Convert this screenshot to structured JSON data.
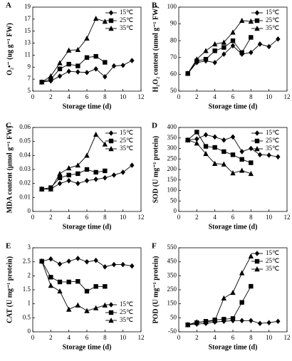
{
  "chart_data": [
    {
      "type": "line",
      "label": "A",
      "ylabel": "O₂•⁻ (ug g⁻¹ FW)",
      "xlabel": "Storage time (d)",
      "xlim": [
        0,
        12
      ],
      "xticks": [
        0,
        2,
        4,
        6,
        8,
        10,
        12
      ],
      "ylim": [
        5,
        19
      ],
      "yticks": [
        5,
        7,
        9,
        11,
        13,
        15,
        17,
        19
      ],
      "legend": "upper-right",
      "series": [
        {
          "name": "15℃",
          "color": "#000000",
          "marker": "diamond",
          "x": [
            1,
            2,
            3,
            4,
            5,
            6,
            7,
            8,
            9,
            10,
            11
          ],
          "values": [
            6.5,
            6.7,
            7.5,
            8.3,
            8.2,
            8.1,
            8.7,
            7.4,
            9.2,
            9.3,
            10.1
          ]
        },
        {
          "name": "25℃",
          "color": "#000000",
          "marker": "square",
          "x": [
            1,
            2,
            3,
            4,
            5,
            6,
            7,
            8
          ],
          "values": [
            6.5,
            7.0,
            8.7,
            9.5,
            9.2,
            10.6,
            10.8,
            9.8
          ]
        },
        {
          "name": "35℃",
          "color": "#000000",
          "marker": "triangle",
          "x": [
            1,
            2,
            3,
            4,
            5,
            6,
            7,
            8
          ],
          "values": [
            6.5,
            7.5,
            9.7,
            11.8,
            11.9,
            13.8,
            17.1,
            16.6
          ]
        }
      ]
    },
    {
      "type": "line",
      "label": "B",
      "ylabel": "H₂O₂ content (umol g⁻¹ FW)",
      "xlabel": "Storage time (d)",
      "xlim": [
        0,
        12
      ],
      "xticks": [
        0,
        2,
        4,
        6,
        8,
        10,
        12
      ],
      "ylim": [
        50,
        100
      ],
      "yticks": [
        50,
        60,
        70,
        80,
        90,
        100
      ],
      "legend": "upper-right",
      "series": [
        {
          "name": "15℃",
          "color": "#000000",
          "marker": "diamond",
          "x": [
            1,
            2,
            3,
            4,
            5,
            6,
            7,
            8,
            9,
            10,
            11
          ],
          "values": [
            60.5,
            67,
            68,
            67,
            72,
            77,
            72,
            73,
            78,
            76.5,
            81
          ]
        },
        {
          "name": "25℃",
          "color": "#000000",
          "marker": "square",
          "x": [
            1,
            2,
            3,
            4,
            5,
            6,
            7,
            8
          ],
          "values": [
            60.5,
            68,
            69,
            74,
            76,
            80,
            73,
            82
          ]
        },
        {
          "name": "35℃",
          "color": "#000000",
          "marker": "triangle",
          "x": [
            1,
            2,
            3,
            4,
            5,
            6,
            7,
            8
          ],
          "values": [
            60.5,
            69,
            74,
            78,
            79,
            85,
            92,
            91.5
          ]
        }
      ]
    },
    {
      "type": "line",
      "label": "C",
      "ylabel": "MDA content (μmol g⁻¹ FW)",
      "xlabel": "Storage time (d)",
      "xlim": [
        0,
        12
      ],
      "xticks": [
        0,
        2,
        4,
        6,
        8,
        10,
        12
      ],
      "ylim": [
        0,
        0.06
      ],
      "yticks": [
        0,
        0.01,
        0.02,
        0.03,
        0.04,
        0.05,
        0.06
      ],
      "legend": "upper-right",
      "series": [
        {
          "name": "15℃",
          "color": "#000000",
          "marker": "diamond",
          "x": [
            1,
            2,
            3,
            4,
            5,
            6,
            7,
            8,
            9,
            10,
            11
          ],
          "values": [
            0.016,
            0.016,
            0.02,
            0.022,
            0.02,
            0.022,
            0.023,
            0.024,
            0.026,
            0.028,
            0.033
          ]
        },
        {
          "name": "25℃",
          "color": "#000000",
          "marker": "square",
          "x": [
            1,
            2,
            3,
            4,
            5,
            6,
            7,
            8
          ],
          "values": [
            0.016,
            0.017,
            0.024,
            0.026,
            0.027,
            0.03,
            0.028,
            0.029
          ]
        },
        {
          "name": "35℃",
          "color": "#000000",
          "marker": "triangle",
          "x": [
            1,
            2,
            3,
            4,
            5,
            6,
            7,
            8
          ],
          "values": [
            0.016,
            0.016,
            0.027,
            0.031,
            0.033,
            0.04,
            0.055,
            0.048
          ]
        }
      ]
    },
    {
      "type": "line",
      "label": "D",
      "ylabel": "SOD (U mg⁻¹ protein)",
      "xlabel": "Storage time (d)",
      "xlim": [
        0,
        12
      ],
      "xticks": [
        0,
        2,
        4,
        6,
        8,
        10,
        12
      ],
      "ylim": [
        0,
        400
      ],
      "yticks": [
        0,
        50,
        100,
        150,
        200,
        250,
        300,
        350,
        400
      ],
      "legend": "upper-right",
      "series": [
        {
          "name": "15℃",
          "color": "#000000",
          "marker": "diamond",
          "x": [
            1,
            2,
            3,
            4,
            5,
            6,
            7,
            8,
            9,
            10,
            11
          ],
          "values": [
            340,
            345,
            365,
            355,
            340,
            355,
            285,
            300,
            270,
            268,
            260
          ]
        },
        {
          "name": "25℃",
          "color": "#000000",
          "marker": "square",
          "x": [
            1,
            2,
            3,
            4,
            5,
            6,
            7,
            8
          ],
          "values": [
            340,
            378,
            310,
            305,
            285,
            270,
            248,
            232
          ]
        },
        {
          "name": "35℃",
          "color": "#000000",
          "marker": "triangle",
          "x": [
            1,
            2,
            3,
            4,
            5,
            6,
            7,
            8
          ],
          "values": [
            340,
            325,
            275,
            228,
            225,
            183,
            195,
            180
          ]
        }
      ]
    },
    {
      "type": "line",
      "label": "E",
      "ylabel": "CAT (U mg⁻¹ protein)",
      "xlabel": "Storage time (d)",
      "xlim": [
        0,
        12
      ],
      "xticks": [
        0,
        2,
        4,
        6,
        8,
        10,
        12
      ],
      "ylim": [
        0,
        3
      ],
      "yticks": [
        0,
        0.5,
        1,
        1.5,
        2,
        2.5,
        3
      ],
      "legend": "lower-right",
      "series": [
        {
          "name": "15℃",
          "color": "#000000",
          "marker": "diamond",
          "x": [
            1,
            2,
            3,
            4,
            5,
            6,
            7,
            8,
            9,
            10,
            11
          ],
          "values": [
            2.52,
            2.6,
            2.42,
            2.52,
            2.62,
            2.5,
            2.55,
            2.32,
            2.4,
            2.4,
            2.35
          ]
        },
        {
          "name": "25℃",
          "color": "#000000",
          "marker": "square",
          "x": [
            1,
            2,
            3,
            4,
            5,
            6,
            7,
            8
          ],
          "values": [
            2.52,
            1.95,
            1.78,
            1.78,
            1.8,
            1.45,
            1.62,
            1.62
          ]
        },
        {
          "name": "35℃",
          "color": "#000000",
          "marker": "triangle",
          "x": [
            1,
            2,
            3,
            4,
            5,
            6,
            7,
            8
          ],
          "values": [
            2.52,
            1.65,
            1.45,
            0.8,
            0.95,
            0.75,
            0.85,
            0.95
          ]
        }
      ]
    },
    {
      "type": "line",
      "label": "F",
      "ylabel": "POD (U mg⁻¹ protein)",
      "xlabel": "Storage time (d)",
      "xlim": [
        0,
        12
      ],
      "xticks": [
        0,
        2,
        4,
        6,
        8,
        10,
        12
      ],
      "ylim": [
        -50,
        550
      ],
      "yticks": [
        -50,
        50,
        150,
        250,
        350,
        450,
        550
      ],
      "legend": "upper-right",
      "series": [
        {
          "name": "15℃",
          "color": "#000000",
          "marker": "diamond",
          "x": [
            1,
            2,
            3,
            4,
            5,
            6,
            7,
            8,
            9,
            10,
            11
          ],
          "values": [
            0,
            5,
            10,
            20,
            25,
            30,
            30,
            30,
            10,
            15,
            25
          ]
        },
        {
          "name": "25℃",
          "color": "#000000",
          "marker": "square",
          "x": [
            1,
            2,
            3,
            4,
            5,
            6,
            7,
            8
          ],
          "values": [
            0,
            15,
            25,
            35,
            40,
            45,
            160,
            275
          ]
        },
        {
          "name": "35℃",
          "color": "#000000",
          "marker": "triangle",
          "x": [
            1,
            2,
            3,
            4,
            5,
            6,
            7,
            8
          ],
          "values": [
            0,
            20,
            20,
            30,
            190,
            230,
            370,
            490
          ]
        }
      ]
    }
  ]
}
